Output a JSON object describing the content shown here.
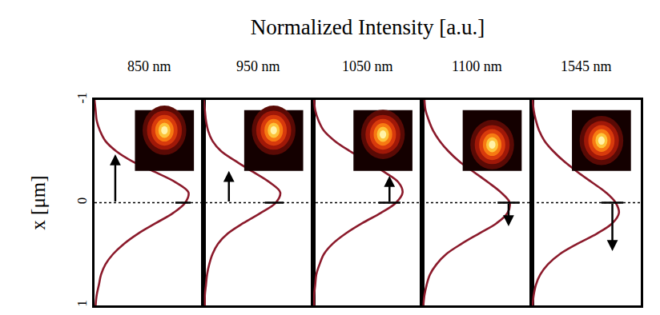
{
  "chart_data": {
    "type": "line",
    "title": "Normalized Intensity [a.u.]",
    "y_label": "x [μm]",
    "x": [
      -1,
      -0.9,
      -0.8,
      -0.7,
      -0.6,
      -0.5,
      -0.4,
      -0.3,
      -0.2,
      -0.1,
      0,
      0.1,
      0.2,
      0.3,
      0.4,
      0.5,
      0.6,
      0.7,
      0.8,
      0.9,
      1
    ],
    "xlim": [
      0,
      1
    ],
    "ylim": [
      -1,
      1
    ],
    "yticks": [
      -1,
      0,
      1
    ],
    "grid": false,
    "tick_labels": "y",
    "reference_line": 0,
    "series": [
      {
        "name": "850 nm",
        "color": "#8b1a2b",
        "shift": -0.47,
        "values": [
          0.0,
          0.01,
          0.02,
          0.05,
          0.1,
          0.2,
          0.35,
          0.55,
          0.74,
          0.86,
          0.83,
          0.72,
          0.56,
          0.4,
          0.27,
          0.17,
          0.1,
          0.06,
          0.04,
          0.02,
          0.01
        ]
      },
      {
        "name": "950 nm",
        "color": "#8b1a2b",
        "shift": -0.31,
        "values": [
          0.0,
          0.01,
          0.02,
          0.04,
          0.08,
          0.16,
          0.3,
          0.45,
          0.6,
          0.7,
          0.66,
          0.52,
          0.36,
          0.22,
          0.13,
          0.08,
          0.05,
          0.03,
          0.02,
          0.01,
          0.01
        ]
      },
      {
        "name": "1050 nm",
        "color": "#8b1a2b",
        "shift": -0.26,
        "values": [
          0.01,
          0.02,
          0.05,
          0.1,
          0.2,
          0.34,
          0.5,
          0.65,
          0.78,
          0.82,
          0.76,
          0.62,
          0.45,
          0.3,
          0.18,
          0.1,
          0.06,
          0.03,
          0.02,
          0.01,
          0.01
        ]
      },
      {
        "name": "1100 nm",
        "color": "#8b1a2b",
        "shift": 0.23,
        "values": [
          0.02,
          0.03,
          0.06,
          0.1,
          0.16,
          0.24,
          0.34,
          0.47,
          0.6,
          0.72,
          0.8,
          0.78,
          0.68,
          0.52,
          0.36,
          0.22,
          0.13,
          0.07,
          0.04,
          0.02,
          0.01
        ]
      },
      {
        "name": "1545 nm",
        "color": "#8b1a2b",
        "shift": 0.47,
        "values": [
          0.01,
          0.02,
          0.04,
          0.07,
          0.12,
          0.2,
          0.3,
          0.42,
          0.55,
          0.68,
          0.77,
          0.8,
          0.74,
          0.6,
          0.42,
          0.26,
          0.15,
          0.08,
          0.04,
          0.02,
          0.01
        ]
      }
    ]
  }
}
